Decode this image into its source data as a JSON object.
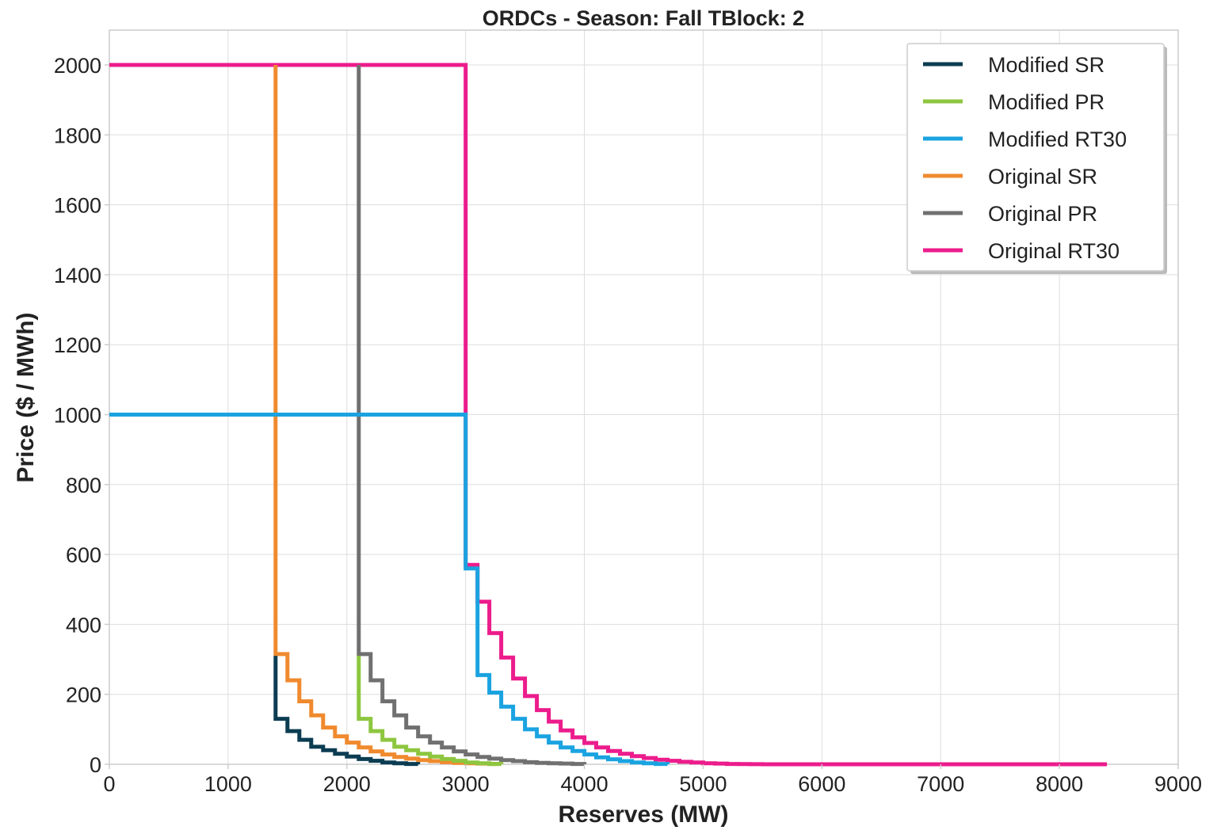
{
  "chart_data": {
    "type": "line",
    "step": true,
    "title": "ORDCs - Season: Fall TBlock: 2",
    "xlabel": "Reserves (MW)",
    "ylabel": "Price ($ / MWh)",
    "xlim": [
      0,
      9000
    ],
    "ylim": [
      0,
      2100
    ],
    "xticks": [
      0,
      1000,
      2000,
      3000,
      4000,
      5000,
      6000,
      7000,
      8000,
      9000
    ],
    "yticks": [
      0,
      200,
      400,
      600,
      800,
      1000,
      1200,
      1400,
      1600,
      1800,
      2000
    ],
    "grid": true,
    "legend_position": "top-right",
    "series": [
      {
        "name": "Modified SR",
        "color": "#0b3c52",
        "x": [
          1400,
          1400,
          1500,
          1600,
          1700,
          1800,
          1900,
          2000,
          2100,
          2200,
          2300,
          2400,
          2500,
          2600
        ],
        "y": [
          310,
          130,
          95,
          70,
          50,
          40,
          30,
          22,
          15,
          10,
          5,
          3,
          1,
          0
        ]
      },
      {
        "name": "Modified PR",
        "color": "#8dc63f",
        "x": [
          2100,
          2100,
          2200,
          2300,
          2400,
          2500,
          2600,
          2700,
          2800,
          2900,
          3000,
          3100,
          3200,
          3300
        ],
        "y": [
          310,
          130,
          95,
          70,
          50,
          40,
          30,
          22,
          15,
          10,
          5,
          3,
          1,
          0
        ]
      },
      {
        "name": "Modified RT30",
        "color": "#1aa3e0",
        "x": [
          0,
          3000,
          3000,
          3100,
          3200,
          3300,
          3400,
          3500,
          3600,
          3700,
          3800,
          3900,
          4000,
          4100,
          4200,
          4300,
          4400,
          4500,
          4600,
          4700
        ],
        "y": [
          1000,
          1000,
          560,
          255,
          205,
          165,
          130,
          100,
          80,
          62,
          48,
          38,
          28,
          20,
          14,
          9,
          5,
          3,
          1,
          0
        ]
      },
      {
        "name": "Original SR",
        "color": "#f08a2e",
        "x": [
          1400,
          1400,
          1400,
          1500,
          1600,
          1700,
          1800,
          1900,
          2000,
          2100,
          2200,
          2300,
          2400,
          2500,
          2600,
          2700,
          2800,
          2900,
          3000,
          3100,
          3200,
          3300
        ],
        "y": [
          2000,
          2000,
          315,
          240,
          180,
          140,
          105,
          80,
          62,
          48,
          37,
          28,
          21,
          16,
          12,
          9,
          6,
          4,
          3,
          2,
          1,
          0
        ]
      },
      {
        "name": "Original PR",
        "color": "#707070",
        "x": [
          2100,
          2100,
          2100,
          2200,
          2300,
          2400,
          2500,
          2600,
          2700,
          2800,
          2900,
          3000,
          3100,
          3200,
          3300,
          3400,
          3500,
          3600,
          3700,
          3800,
          3900,
          4000
        ],
        "y": [
          2000,
          2000,
          315,
          240,
          180,
          140,
          105,
          80,
          62,
          48,
          37,
          28,
          21,
          16,
          12,
          9,
          6,
          4,
          3,
          2,
          1,
          0
        ]
      },
      {
        "name": "Original RT30",
        "color": "#ec1c8c",
        "x": [
          0,
          3000,
          3000,
          3100,
          3200,
          3300,
          3400,
          3500,
          3600,
          3700,
          3800,
          3900,
          4000,
          4100,
          4200,
          4300,
          4400,
          4500,
          4600,
          4700,
          4800,
          4900,
          5000,
          5100,
          5200,
          5300,
          5400,
          5500,
          8400
        ],
        "y": [
          2000,
          2000,
          570,
          465,
          375,
          305,
          245,
          195,
          155,
          122,
          97,
          77,
          61,
          48,
          38,
          30,
          23,
          18,
          13,
          10,
          7,
          5,
          3,
          2,
          1,
          0.5,
          0.2,
          0,
          0
        ]
      }
    ]
  }
}
